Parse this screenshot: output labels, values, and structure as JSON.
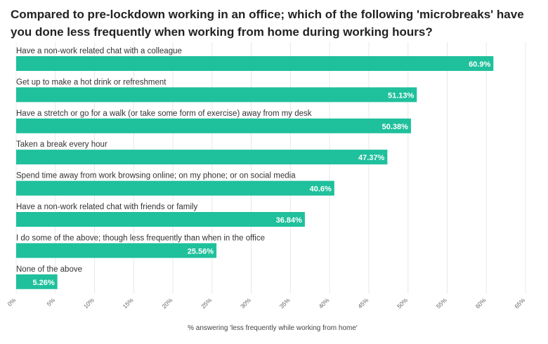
{
  "chart_data": {
    "type": "bar",
    "orientation": "horizontal",
    "title": "Compared to pre-lockdown working in an office; which of the following 'microbreaks' have you done less frequently when working from home during working hours?",
    "xlabel": "% answering 'less frequently while working from home'",
    "categories": [
      "Have a non-work related chat with a colleague",
      "Get up to make a hot drink or refreshment",
      "Have a stretch or go for a walk (or take some form of exercise) away from my desk",
      "Taken a break every hour",
      "Spend time away from work browsing online; on my phone; or on social media",
      "Have a non-work related chat with friends or family",
      "I do some of the above; though less frequently than when in the office",
      "None of the above"
    ],
    "values": [
      60.9,
      51.13,
      50.38,
      47.37,
      40.6,
      36.84,
      25.56,
      5.26
    ],
    "value_labels": [
      "60.9%",
      "51.13%",
      "50.38%",
      "47.37%",
      "40.6%",
      "36.84%",
      "25.56%",
      "5.26%"
    ],
    "xlim": [
      0,
      65
    ],
    "ticks": [
      0,
      5,
      10,
      15,
      20,
      25,
      30,
      35,
      40,
      45,
      50,
      55,
      60,
      65
    ],
    "tick_labels": [
      "0%",
      "5%",
      "10%",
      "15%",
      "20%",
      "25%",
      "30%",
      "35%",
      "40%",
      "45%",
      "50%",
      "55%",
      "60%",
      "65%"
    ],
    "grid": true,
    "colors": {
      "bar": "#1fc09c"
    }
  }
}
